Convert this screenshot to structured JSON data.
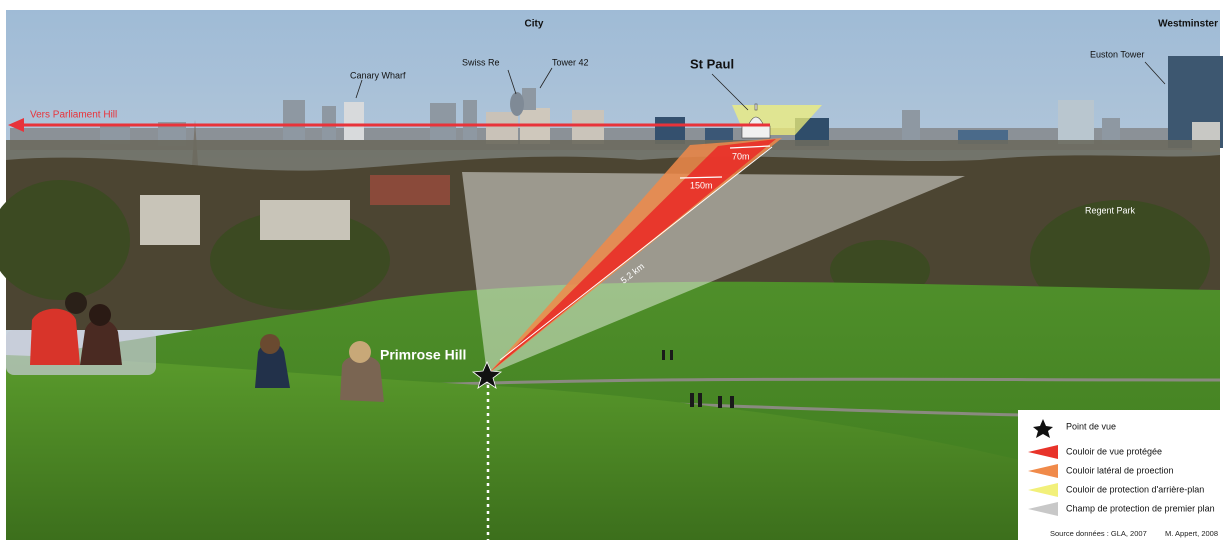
{
  "labels": {
    "city": "City",
    "westminster": "Westminster",
    "canary_wharf": "Canary Wharf",
    "swiss_re": "Swiss Re",
    "tower_42": "Tower 42",
    "st_paul": "St Paul",
    "euston_tower": "Euston Tower",
    "parliament_hill": "Vers Parliament Hill",
    "width_70": "70m",
    "width_150": "150m",
    "distance": "5.2 km",
    "regent_park": "Regent Park",
    "primrose_hill": "Primrose Hill"
  },
  "legend": {
    "items": [
      "Point de vue",
      "Couloir de vue protégée",
      "Couloir latéral de proection",
      "Couloir de protection d'arrière-plan",
      "Champ de protection de premier plan"
    ],
    "source": "Source données : GLA, 2007",
    "author": "M. Appert, 2008"
  }
}
